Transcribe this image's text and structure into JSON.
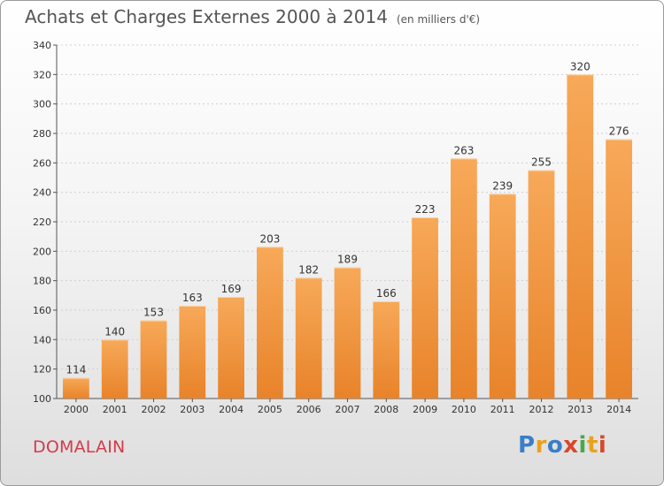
{
  "header": {
    "title": "Achats et Charges Externes 2000 à 2014",
    "subtitle": "(en milliers d'€)"
  },
  "footer": {
    "city": "DOMALAIN",
    "logo": "Proxiti"
  },
  "chart_data": {
    "type": "bar",
    "title": "Achats et Charges Externes 2000 à 2014",
    "subtitle": "(en milliers d'€)",
    "xlabel": "",
    "ylabel": "",
    "categories": [
      "2000",
      "2001",
      "2002",
      "2003",
      "2004",
      "2005",
      "2006",
      "2007",
      "2008",
      "2009",
      "2010",
      "2011",
      "2012",
      "2013",
      "2014"
    ],
    "values": [
      114,
      140,
      153,
      163,
      169,
      203,
      182,
      189,
      166,
      223,
      263,
      239,
      255,
      320,
      276
    ],
    "ylim": [
      100,
      340
    ],
    "yticks": [
      100,
      120,
      140,
      160,
      180,
      200,
      220,
      240,
      260,
      280,
      300,
      320,
      340
    ],
    "grid": true,
    "bar_color": "#e8832a",
    "bar_color_light": "#f7a959"
  }
}
